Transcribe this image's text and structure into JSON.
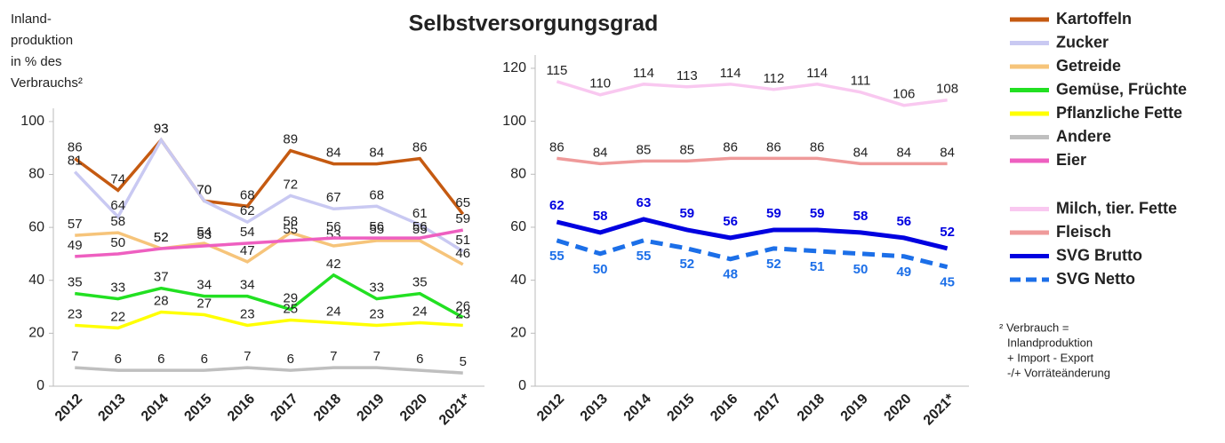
{
  "title": "Selbstversorgungsgrad",
  "footnote": [
    "² Verbrauch =",
    "Inlandproduktion",
    "+ Import - Export",
    "-/+ Vorräteänderung"
  ],
  "chart_data": [
    {
      "type": "line",
      "ylabel": [
        "Inland-",
        "produktion",
        "in % des",
        "Verbrauchs²"
      ],
      "categories": [
        "2012",
        "2013",
        "2014",
        "2015",
        "2016",
        "2017",
        "2018",
        "2019",
        "2020",
        "2021*"
      ],
      "ylim": [
        0,
        105
      ],
      "yticks": [
        0,
        20,
        40,
        60,
        80,
        100
      ],
      "series": [
        {
          "name": "Kartoffeln",
          "color": "#c55a11",
          "values": [
            86,
            74,
            93,
            70,
            68,
            89,
            84,
            84,
            86,
            65
          ]
        },
        {
          "name": "Zucker",
          "color": "#c9c9f2",
          "values": [
            81,
            64,
            93,
            70,
            62,
            72,
            67,
            68,
            61,
            51
          ]
        },
        {
          "name": "Getreide",
          "color": "#f6c47a",
          "values": [
            57,
            58,
            52,
            54,
            47,
            58,
            53,
            55,
            55,
            46
          ]
        },
        {
          "name": "Gemüse, Früchte",
          "color": "#22e022",
          "values": [
            35,
            33,
            37,
            34,
            34,
            29,
            42,
            33,
            35,
            26
          ]
        },
        {
          "name": "Pflanzliche Fette",
          "color": "#ffff00",
          "values": [
            23,
            22,
            28,
            27,
            23,
            25,
            24,
            23,
            24,
            23
          ]
        },
        {
          "name": "Andere",
          "color": "#bfbfbf",
          "values": [
            7,
            6,
            6,
            6,
            7,
            6,
            7,
            7,
            6,
            5
          ]
        },
        {
          "name": "Eier",
          "color": "#ee5fc0",
          "values": [
            49,
            50,
            52,
            53,
            54,
            55,
            56,
            56,
            56,
            59
          ]
        }
      ]
    },
    {
      "type": "line",
      "categories": [
        "2012",
        "2013",
        "2014",
        "2015",
        "2016",
        "2017",
        "2018",
        "2019",
        "2020",
        "2021*"
      ],
      "ylim": [
        0,
        125
      ],
      "yticks": [
        0,
        20,
        40,
        60,
        80,
        100,
        120
      ],
      "series": [
        {
          "name": "Milch, tier. Fette",
          "color": "#f9c8f0",
          "values": [
            115,
            110,
            114,
            113,
            114,
            112,
            114,
            111,
            106,
            108
          ]
        },
        {
          "name": "Fleisch",
          "color": "#ef9a9a",
          "values": [
            86,
            84,
            85,
            85,
            86,
            86,
            86,
            84,
            84,
            84
          ]
        },
        {
          "name": "SVG Brutto",
          "color": "#0000e0",
          "label_color": "#0000e0",
          "values": [
            62,
            58,
            63,
            59,
            56,
            59,
            59,
            58,
            56,
            52
          ]
        },
        {
          "name": "SVG Netto",
          "color": "#1c6fe8",
          "label_color": "#1c6fe8",
          "dashed": true,
          "values": [
            55,
            50,
            55,
            52,
            48,
            52,
            51,
            50,
            49,
            45
          ]
        }
      ]
    }
  ]
}
